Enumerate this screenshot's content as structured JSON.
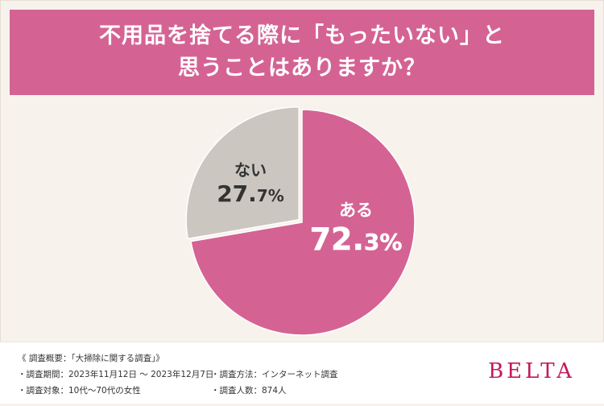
{
  "title": {
    "line1": "不用品を捨てる際に「もったいない」と",
    "line2": "思うことはありますか？"
  },
  "chart_data": {
    "type": "pie",
    "slices": [
      {
        "label": "ある",
        "value": 72.3,
        "display_int": "72.",
        "display_dec": "3%",
        "color": "#d46394"
      },
      {
        "label": "ない",
        "value": 27.7,
        "display_int": "27.",
        "display_dec": "7%",
        "color": "#cbc6c0"
      }
    ]
  },
  "survey": {
    "heading": "《 調査概要：「大掃除に関する調査」》",
    "period": "・調査期間：2023年11月12日 ～ 2023年12月7日",
    "method": "・調査方法：インターネット調査",
    "target": "・調査対象：10代～70代の女性",
    "count": "・調査人数：874人"
  },
  "brand": "BELTA",
  "colors": {
    "banner": "#d46394",
    "background": "#f7f2ec",
    "brand": "#c2185b"
  }
}
